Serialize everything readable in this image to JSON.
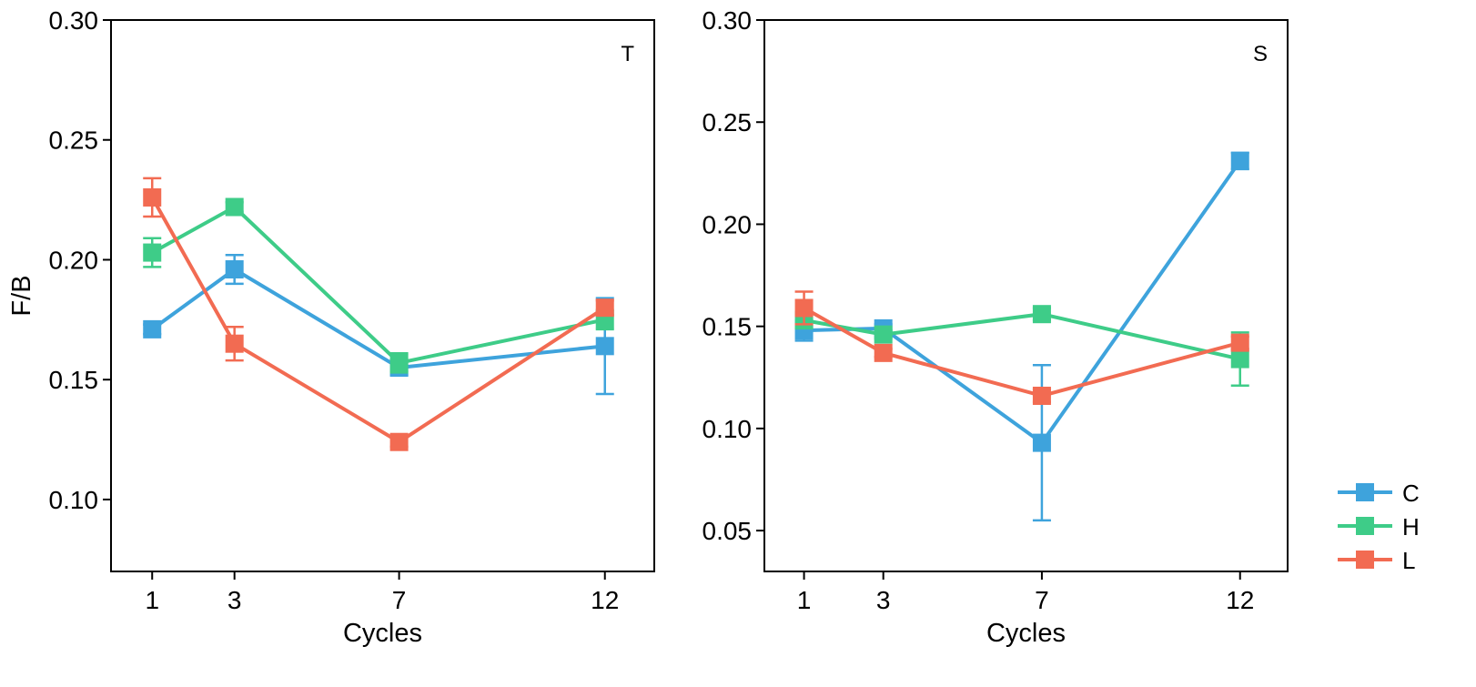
{
  "chart_data": [
    {
      "type": "line",
      "panel_label": "T",
      "title": "",
      "xlabel": "Cycles",
      "ylabel": "F/B",
      "x": [
        1,
        3,
        7,
        12
      ],
      "x_tick_labels": [
        "1",
        "3",
        "7",
        "12"
      ],
      "xlim": [
        0,
        13.2
      ],
      "ylim": [
        0.07,
        0.3
      ],
      "y_ticks": [
        0.1,
        0.15,
        0.2,
        0.25,
        0.3
      ],
      "y_tick_labels": [
        "0.10",
        "0.15",
        "0.20",
        "0.25",
        "0.30"
      ],
      "grid": false,
      "series": [
        {
          "name": "C",
          "color": "#3ea3dc",
          "values": [
            0.171,
            0.196,
            0.155,
            0.164
          ],
          "errors": [
            0.002,
            0.006,
            0.003,
            0.02
          ]
        },
        {
          "name": "H",
          "color": "#3ecc88",
          "values": [
            0.203,
            0.222,
            0.157,
            0.175
          ],
          "errors": [
            0.006,
            0.002,
            0.004,
            0.004
          ]
        },
        {
          "name": "L",
          "color": "#f26b52",
          "values": [
            0.226,
            0.165,
            0.124,
            0.18
          ],
          "errors": [
            0.008,
            0.007,
            0.002,
            0.003
          ]
        }
      ]
    },
    {
      "type": "line",
      "panel_label": "S",
      "title": "",
      "xlabel": "Cycles",
      "ylabel": "",
      "x": [
        1,
        3,
        7,
        12
      ],
      "x_tick_labels": [
        "1",
        "3",
        "7",
        "12"
      ],
      "xlim": [
        0,
        13.2
      ],
      "ylim": [
        0.03,
        0.3
      ],
      "y_ticks": [
        0.05,
        0.1,
        0.15,
        0.2,
        0.25,
        0.3
      ],
      "y_tick_labels": [
        "0.05",
        "0.10",
        "0.15",
        "0.20",
        "0.25",
        "0.30"
      ],
      "grid": false,
      "series": [
        {
          "name": "C",
          "color": "#3ea3dc",
          "values": [
            0.148,
            0.149,
            0.093,
            0.231
          ],
          "errors": [
            0.005,
            0.002,
            0.038,
            0.004
          ]
        },
        {
          "name": "H",
          "color": "#3ecc88",
          "values": [
            0.153,
            0.146,
            0.156,
            0.134
          ],
          "errors": [
            0.004,
            0.002,
            0.003,
            0.013
          ]
        },
        {
          "name": "L",
          "color": "#f26b52",
          "values": [
            0.159,
            0.137,
            0.116,
            0.142
          ],
          "errors": [
            0.008,
            0.002,
            0.003,
            0.003
          ]
        }
      ]
    }
  ],
  "legend": {
    "placement": "bottom-right",
    "entries": [
      {
        "name": "C",
        "color": "#3ea3dc"
      },
      {
        "name": "H",
        "color": "#3ecc88"
      },
      {
        "name": "L",
        "color": "#f26b52"
      }
    ]
  }
}
